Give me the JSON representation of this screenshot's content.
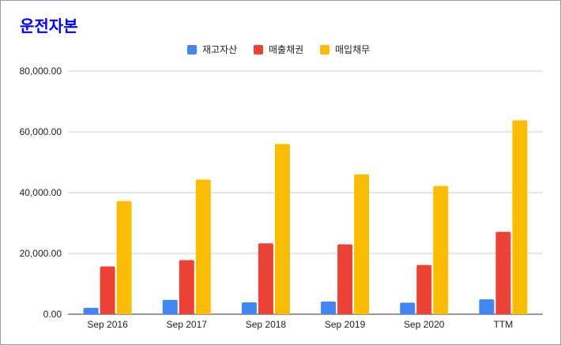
{
  "title": "운전자본",
  "chart_data": {
    "type": "bar",
    "categories": [
      "Sep 2016",
      "Sep 2017",
      "Sep 2018",
      "Sep 2019",
      "Sep 2020",
      "TTM"
    ],
    "series": [
      {
        "name": "재고자산",
        "color": "#4285f4",
        "values": [
          2100,
          4700,
          3900,
          4200,
          3800,
          4900
        ]
      },
      {
        "name": "매출채권",
        "color": "#ea4335",
        "values": [
          15700,
          17800,
          23300,
          23000,
          16200,
          27100
        ]
      },
      {
        "name": "매입채무",
        "color": "#fbbc04",
        "values": [
          37200,
          44300,
          56000,
          46000,
          42200,
          63800
        ]
      }
    ],
    "y_ticks": [
      "0.00",
      "20,000.00",
      "40,000.00",
      "60,000.00",
      "80,000.00"
    ],
    "ylim": [
      0,
      80000
    ],
    "grid": true,
    "legend_position": "top-center"
  }
}
